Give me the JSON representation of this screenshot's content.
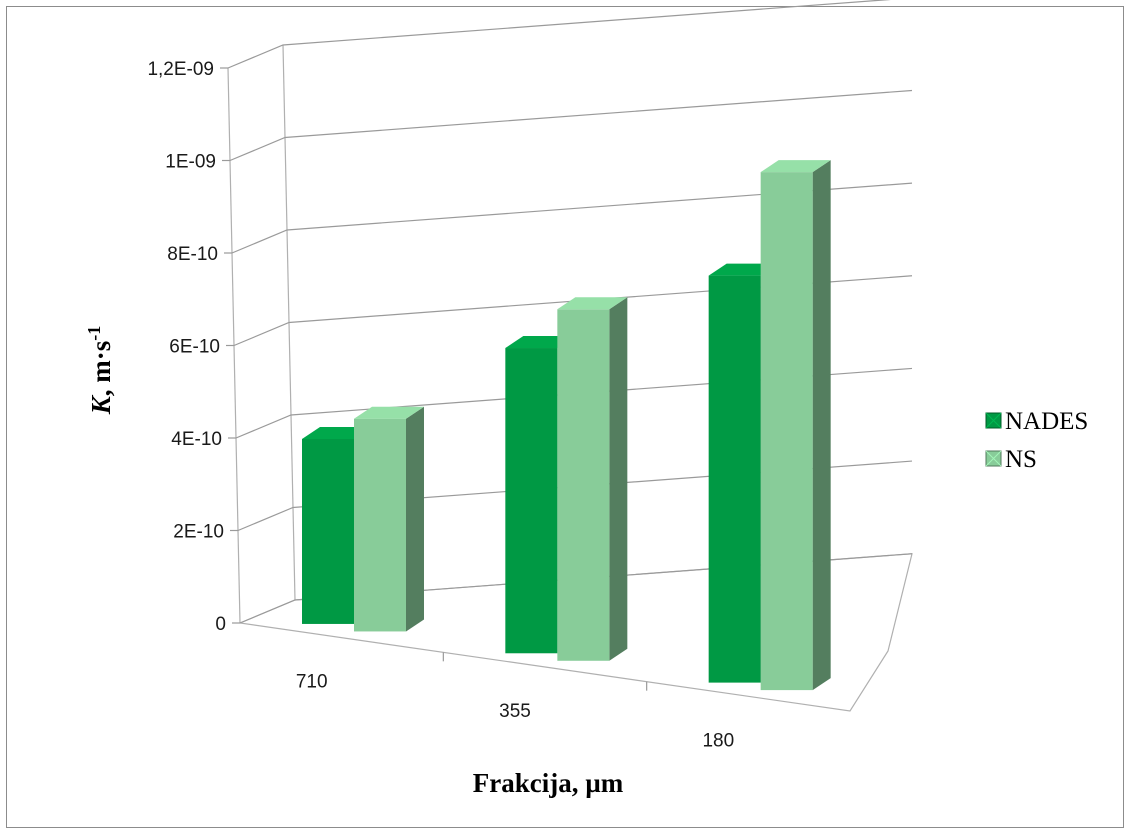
{
  "chart_data": {
    "type": "bar",
    "subtype": "3d-clustered-column",
    "categories": [
      "710",
      "355",
      "180"
    ],
    "series": [
      {
        "name": "NADES",
        "values": [
          4e-10,
          6.6e-10,
          8.8e-10
        ],
        "color": "#009944"
      },
      {
        "name": "NS",
        "values": [
          4.6e-10,
          7.6e-10,
          1.12e-09
        ],
        "color": "#88cc99"
      }
    ],
    "y_ticks": [
      "0",
      "2E-10",
      "4E-10",
      "6E-10",
      "8E-10",
      "1E-09",
      "1,2E-09"
    ],
    "ylim": [
      0,
      1.2e-09
    ],
    "xlabel": "Frakcija, µm",
    "ylabel": {
      "italic": "K",
      "main": ", m·s",
      "sup": "-1"
    },
    "grid": true,
    "legend": "right"
  }
}
